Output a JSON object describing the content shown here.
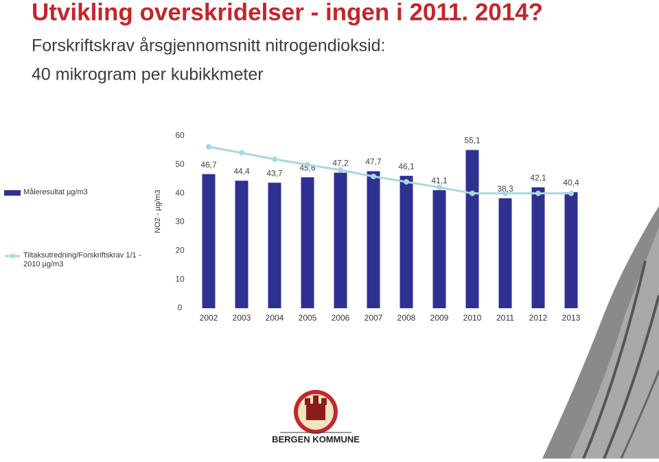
{
  "chart_data": {
    "type": "bar",
    "title": "Utvikling overskridelser - ingen i 2011. 2014?",
    "subtitle": [
      "Forskriftskrav årsgjennomsnitt nitrogendioksid:",
      "40 mikrogram per kubikkmeter"
    ],
    "y_label": "NO2 - µg/m3",
    "categories": [
      "2002",
      "2003",
      "2004",
      "2005",
      "2006",
      "2007",
      "2008",
      "2009",
      "2010",
      "2011",
      "2012",
      "2013"
    ],
    "series": [
      {
        "name": "Måleresultat µg/m3",
        "type": "bar",
        "color": "#2e3192",
        "values": [
          46.7,
          44.4,
          43.7,
          45.6,
          47.2,
          47.7,
          46.1,
          41.1,
          55.1,
          38.3,
          42.1,
          40.4
        ],
        "value_labels": [
          "46,7",
          "44,4",
          "43,7",
          "45,6",
          "47,2",
          "47,7",
          "46,1",
          "41,1",
          "55,1",
          "38,3",
          "42,1",
          "40,4"
        ]
      },
      {
        "name": "Tiltaksutredning/Forskriftskrav 1/1 - 2010 µg/m3",
        "type": "line",
        "color": "#a9d7df",
        "values": [
          56.2,
          54.1,
          51.9,
          50,
          48.1,
          45.9,
          44,
          42.1,
          40,
          40,
          40,
          40
        ]
      }
    ],
    "ylim": [
      0,
      60
    ],
    "yticks": [
      0,
      10,
      20,
      30,
      40,
      50,
      60
    ],
    "legend": "left"
  },
  "footer": {
    "logo_text": "BERGEN KOMMUNE"
  }
}
